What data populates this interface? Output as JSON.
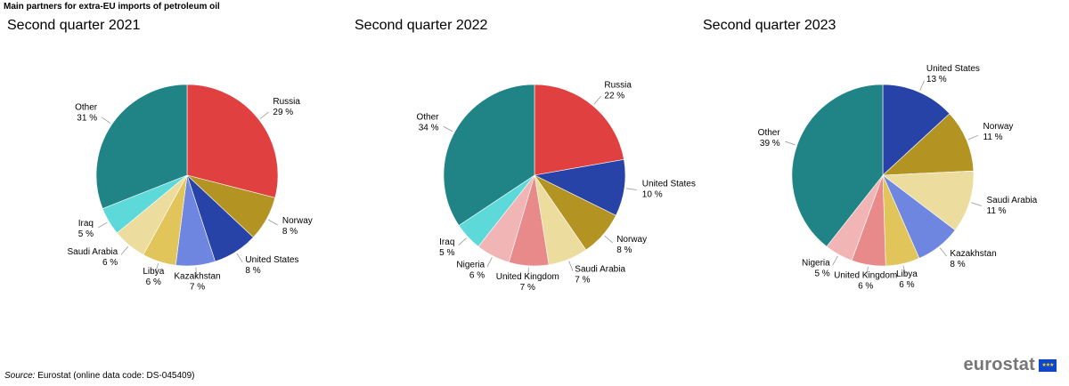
{
  "title": "Main partners for extra-EU imports of petroleum oil",
  "source": {
    "label": "Source:",
    "text": "Eurostat (online data code: DS-045409)"
  },
  "brand": "eurostat",
  "chart_data": [
    {
      "type": "pie",
      "title": "Second quarter 2021",
      "slices": [
        {
          "label": "Russia",
          "value": 29,
          "text": "29 %",
          "color": "#e04040"
        },
        {
          "label": "Norway",
          "value": 8,
          "text": "8 %",
          "color": "#b39422"
        },
        {
          "label": "United States",
          "value": 8,
          "text": "8 %",
          "color": "#2843a8"
        },
        {
          "label": "Kazakhstan",
          "value": 7,
          "text": "7 %",
          "color": "#6f86e0"
        },
        {
          "label": "Libya",
          "value": 6,
          "text": "6 %",
          "color": "#e1c55a"
        },
        {
          "label": "Saudi Arabia",
          "value": 6,
          "text": "6 %",
          "color": "#ecdc9d"
        },
        {
          "label": "Iraq",
          "value": 5,
          "text": "5 %",
          "color": "#5dd9d9"
        },
        {
          "label": "Other",
          "value": 31,
          "text": "31 %",
          "color": "#208486"
        }
      ]
    },
    {
      "type": "pie",
      "title": "Second quarter 2022",
      "slices": [
        {
          "label": "Russia",
          "value": 22,
          "text": "22 %",
          "color": "#e04040"
        },
        {
          "label": "United States",
          "value": 10,
          "text": "10 %",
          "color": "#2843a8"
        },
        {
          "label": "Norway",
          "value": 8,
          "text": "8 %",
          "color": "#b39422"
        },
        {
          "label": "Saudi Arabia",
          "value": 7,
          "text": "7 %",
          "color": "#ecdc9d"
        },
        {
          "label": "United Kingdom",
          "value": 7,
          "text": "7 %",
          "color": "#e98a8a"
        },
        {
          "label": "Nigeria",
          "value": 6,
          "text": "6 %",
          "color": "#f2b5b5"
        },
        {
          "label": "Iraq",
          "value": 5,
          "text": "5 %",
          "color": "#5dd9d9"
        },
        {
          "label": "Other",
          "value": 34,
          "text": "34 %",
          "color": "#208486"
        }
      ]
    },
    {
      "type": "pie",
      "title": "Second quarter 2023",
      "slices": [
        {
          "label": "United States",
          "value": 13,
          "text": "13 %",
          "color": "#2843a8"
        },
        {
          "label": "Norway",
          "value": 11,
          "text": "11 %",
          "color": "#b39422"
        },
        {
          "label": "Saudi Arabia",
          "value": 11,
          "text": "11 %",
          "color": "#ecdc9d"
        },
        {
          "label": "Kazakhstan",
          "value": 8,
          "text": "8 %",
          "color": "#6f86e0"
        },
        {
          "label": "Libya",
          "value": 6,
          "text": "6 %",
          "color": "#e1c55a"
        },
        {
          "label": "United Kingdom",
          "value": 6,
          "text": "6 %",
          "color": "#e98a8a"
        },
        {
          "label": "Nigeria",
          "value": 5,
          "text": "5 %",
          "color": "#f2b5b5"
        },
        {
          "label": "Other",
          "value": 39,
          "text": "39 %",
          "color": "#208486"
        }
      ]
    }
  ]
}
